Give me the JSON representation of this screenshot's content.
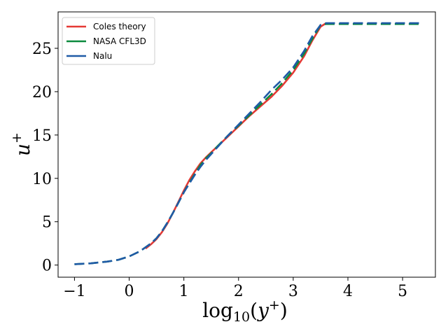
{
  "chart_data": {
    "type": "line",
    "xlabel": "log10(y+)",
    "ylabel": "u+",
    "xlim": [
      -1.3,
      5.6
    ],
    "ylim": [
      -1.4,
      29.2
    ],
    "x_ticks": [
      -1,
      0,
      1,
      2,
      3,
      4,
      5
    ],
    "y_ticks": [
      0,
      5,
      10,
      15,
      20,
      25
    ],
    "x_tick_labels": [
      "−1",
      "0",
      "1",
      "2",
      "3",
      "4",
      "5"
    ],
    "y_tick_labels": [
      "0",
      "5",
      "10",
      "15",
      "20",
      "25"
    ],
    "grid": false,
    "legend": "top-left",
    "series": [
      {
        "name": "Coles theory",
        "color": "#e53935",
        "dash": "solid",
        "x": [
          0.3,
          0.4,
          0.5,
          0.6,
          0.7,
          0.8,
          0.9,
          1.0,
          1.1,
          1.2,
          1.3,
          1.4,
          1.5,
          1.6,
          1.8,
          2.0,
          2.2,
          2.4,
          2.6,
          2.8,
          3.0,
          3.2,
          3.35,
          3.5,
          3.6
        ],
        "y": [
          1.9,
          2.4,
          3.0,
          3.8,
          4.8,
          6.0,
          7.3,
          8.6,
          9.8,
          10.8,
          11.7,
          12.4,
          13.0,
          13.6,
          14.8,
          16.0,
          17.2,
          18.3,
          19.4,
          20.7,
          22.2,
          24.1,
          25.9,
          27.5,
          27.9
        ]
      },
      {
        "name": "NASA CFL3D",
        "color": "#0b8a3e",
        "dash": "dashed",
        "x": [
          -1.0,
          -0.7,
          -0.4,
          -0.2,
          0.0,
          0.2,
          0.4,
          0.5,
          0.6,
          0.7,
          0.8,
          0.9,
          1.0,
          1.1,
          1.2,
          1.3,
          1.4,
          1.5,
          1.6,
          1.8,
          2.0,
          2.2,
          2.4,
          2.6,
          2.8,
          3.0,
          3.2,
          3.35,
          3.5,
          3.6,
          3.8,
          4.2,
          4.6,
          5.0,
          5.3
        ],
        "y": [
          0.1,
          0.2,
          0.4,
          0.6,
          1.0,
          1.6,
          2.5,
          3.1,
          3.9,
          4.9,
          6.0,
          7.2,
          8.4,
          9.5,
          10.5,
          11.5,
          12.3,
          12.9,
          13.6,
          14.9,
          16.1,
          17.3,
          18.5,
          19.7,
          21.0,
          22.5,
          24.4,
          26.1,
          27.7,
          27.8,
          27.8,
          27.8,
          27.8,
          27.8,
          27.8
        ]
      },
      {
        "name": "Nalu",
        "color": "#1f5aa6",
        "dash": "dashed",
        "x": [
          -1.0,
          -0.7,
          -0.4,
          -0.2,
          0.0,
          0.2,
          0.4,
          0.5,
          0.6,
          0.7,
          0.8,
          0.9,
          1.0,
          1.1,
          1.2,
          1.3,
          1.4,
          1.5,
          1.6,
          1.8,
          2.0,
          2.2,
          2.4,
          2.6,
          2.8,
          3.0,
          3.2,
          3.35,
          3.5,
          3.6,
          3.8,
          4.2,
          4.6,
          5.0,
          5.3
        ],
        "y": [
          0.1,
          0.2,
          0.4,
          0.6,
          1.0,
          1.6,
          2.5,
          3.1,
          3.9,
          4.9,
          6.0,
          7.2,
          8.4,
          9.4,
          10.4,
          11.3,
          12.1,
          12.8,
          13.5,
          14.9,
          16.2,
          17.5,
          18.8,
          20.2,
          21.4,
          22.8,
          24.7,
          26.4,
          27.7,
          27.9,
          27.9,
          27.9,
          27.9,
          27.9,
          27.9
        ]
      }
    ]
  }
}
